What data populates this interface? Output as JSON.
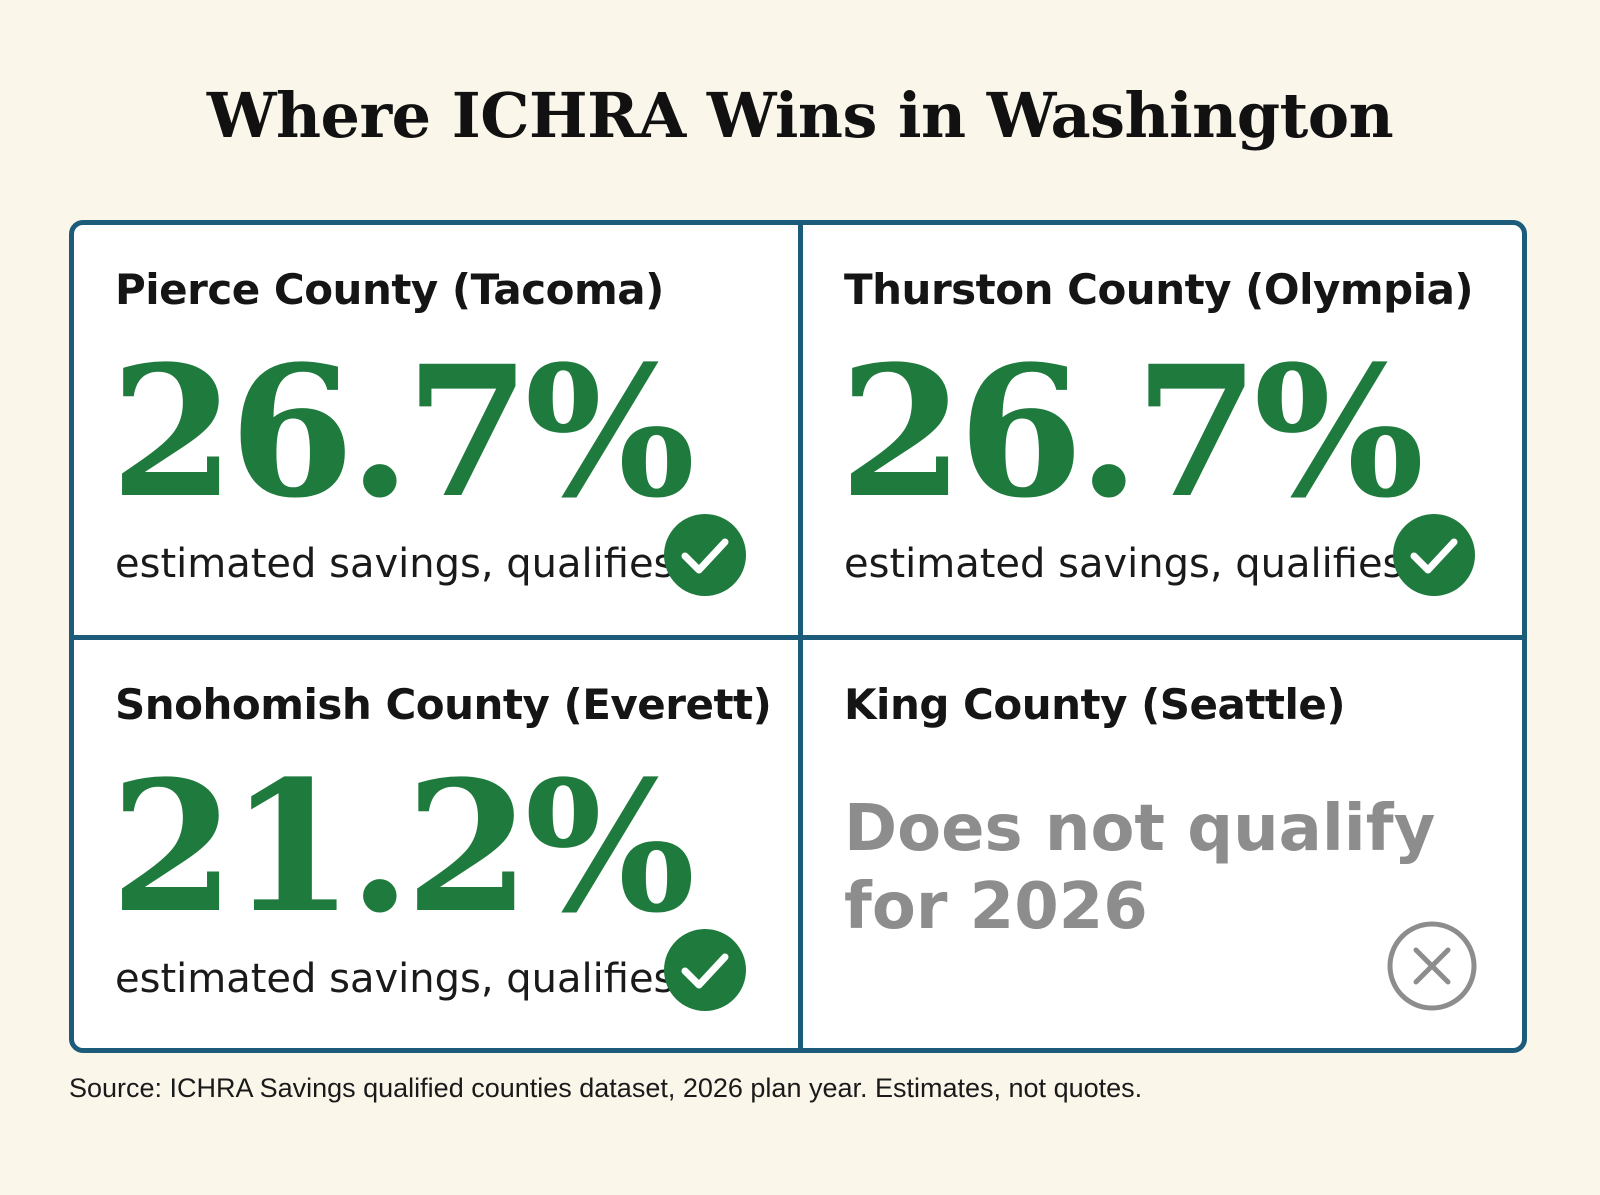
{
  "title": "Where ICHRA Wins in Washington",
  "cards": [
    {
      "county": "Pierce County (Tacoma)",
      "savings": "26.7%",
      "note": "estimated savings, qualifies",
      "status_icon": "check-circle-icon"
    },
    {
      "county": "Thurston County (Olympia)",
      "savings": "26.7%",
      "note": "estimated savings, qualifies",
      "status_icon": "check-circle-icon"
    },
    {
      "county": "Snohomish County (Everett)",
      "savings": "21.2%",
      "note": "estimated savings, qualifies",
      "status_icon": "check-circle-icon"
    },
    {
      "county": "King County (Seattle)",
      "status_line1": "Does not qualify",
      "status_line2": "for 2026",
      "status_icon": "x-circle-icon"
    }
  ],
  "source": "Source: ICHRA Savings qualified counties dataset, 2026 plan year. Estimates, not quotes.",
  "colors": {
    "background": "#fbf6ea",
    "border": "#1d5b7a",
    "savings_green": "#1f7a3d",
    "disqualified_gray": "#8d8d8d"
  }
}
